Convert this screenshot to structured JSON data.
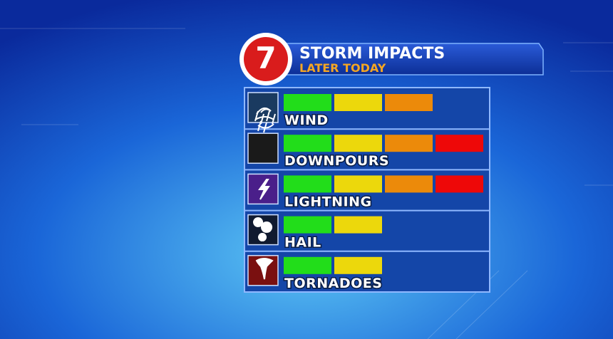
{
  "header": {
    "logo": "7",
    "title": "STORM IMPACTS",
    "subtitle": "LATER TODAY"
  },
  "impact_colors": [
    "#22dd1a",
    "#ecd80c",
    "#ec8a0a",
    "#ee0808"
  ],
  "rows": [
    {
      "label": "WIND",
      "level": 3
    },
    {
      "label": "DOWNPOURS",
      "level": 4
    },
    {
      "label": "LIGHTNING",
      "level": 4
    },
    {
      "label": "HAIL",
      "level": 2
    },
    {
      "label": "TORNADOES",
      "level": 2
    }
  ]
}
